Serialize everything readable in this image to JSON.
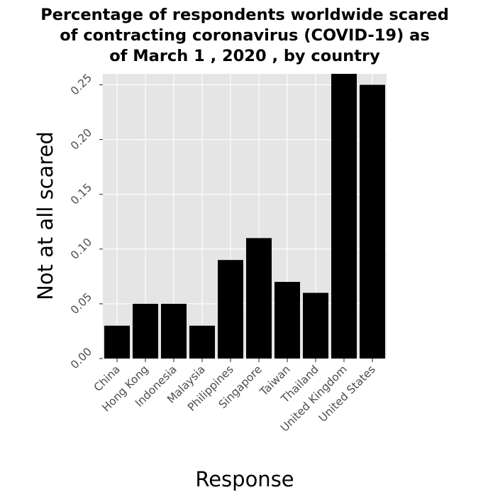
{
  "chart_data": {
    "type": "bar",
    "title_lines": [
      "Percentage of respondents worldwide scared",
      "of contracting coronavirus (COVID-19) as",
      "of March 1 , 2020 , by country"
    ],
    "xlabel": "Response",
    "ylabel": "Not at all scared",
    "categories": [
      "China",
      "Hong Kong",
      "Indonesia",
      "Malaysia",
      "Philippines",
      "Singapore",
      "Taiwan",
      "Thailand",
      "United Kingdom",
      "United States"
    ],
    "values": [
      0.03,
      0.05,
      0.05,
      0.03,
      0.09,
      0.11,
      0.07,
      0.06,
      0.26,
      0.25
    ],
    "ylim": [
      0,
      0.26
    ],
    "yticks": [
      "0.00",
      "0.05",
      "0.10",
      "0.15",
      "0.20",
      "0.25"
    ],
    "ytick_values": [
      0,
      0.05,
      0.1,
      0.15,
      0.2,
      0.25
    ],
    "grid": true,
    "bar_color": "#000000",
    "panel_color": "#e5e5e5",
    "grid_color": "#ffffff"
  }
}
